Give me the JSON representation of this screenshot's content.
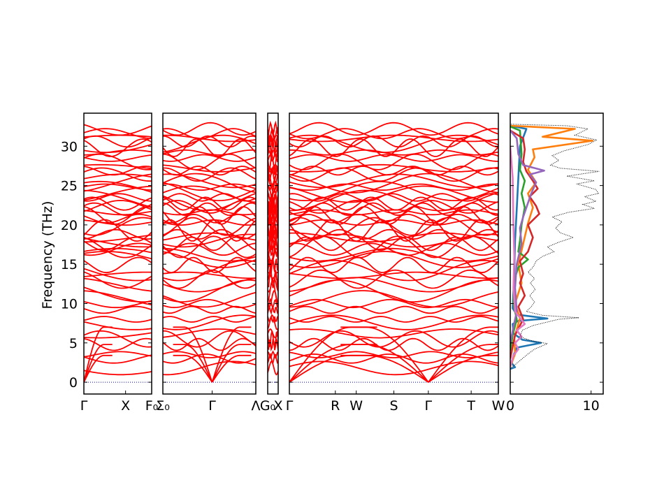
{
  "chart_data": {
    "type": "line",
    "ylabel": "Frequency (THz)",
    "xlabel": "",
    "title": "",
    "ylim": [
      -1.5,
      34.2
    ],
    "y_ticks": [
      0,
      5,
      10,
      15,
      20,
      25,
      30
    ],
    "grid": false,
    "band_color": "#ff0000",
    "zero_line_color": "#0000cc",
    "band_panels": [
      {
        "path": [
          "Γ",
          "X",
          "F_0"
        ],
        "tick_labels": [
          "Γ",
          "X",
          "F₀"
        ]
      },
      {
        "path": [
          "Σ_0",
          "Γ",
          "Λ_0"
        ],
        "tick_labels": [
          "Σ₀",
          "Γ",
          "Λ"
        ]
      },
      {
        "path": [
          "G_0",
          "X"
        ],
        "tick_labels": [
          "G₀",
          "X"
        ]
      },
      {
        "path": [
          "Γ",
          "R",
          "W",
          "S",
          "Γ",
          "T",
          "W"
        ],
        "tick_labels": [
          "Γ",
          "R",
          "W",
          "S",
          "Γ",
          "T",
          "W"
        ]
      }
    ],
    "dos_panel": {
      "x_ticks": [
        0,
        10
      ],
      "xlim": [
        0,
        11.5
      ],
      "total_dos": {
        "style": "dotted",
        "color": "#000000",
        "points": [
          [
            0,
            1.7
          ],
          [
            0.3,
            2.0
          ],
          [
            0.8,
            2.4
          ],
          [
            1.5,
            3.0
          ],
          [
            2.2,
            3.6
          ],
          [
            3.0,
            4.2
          ],
          [
            4.6,
            4.9
          ],
          [
            2.5,
            5.3
          ],
          [
            1.2,
            5.8
          ],
          [
            1.5,
            6.6
          ],
          [
            2.8,
            7.2
          ],
          [
            6.0,
            8.0
          ],
          [
            8.5,
            8.2
          ],
          [
            4.0,
            8.5
          ],
          [
            2.0,
            9.0
          ],
          [
            2.6,
            9.6
          ],
          [
            3.0,
            10.2
          ],
          [
            2.4,
            11.0
          ],
          [
            3.1,
            11.8
          ],
          [
            2.5,
            12.6
          ],
          [
            3.0,
            13.2
          ],
          [
            2.2,
            14.0
          ],
          [
            2.8,
            14.6
          ],
          [
            3.2,
            15.4
          ],
          [
            4.0,
            16.0
          ],
          [
            5.4,
            16.6
          ],
          [
            4.6,
            17.2
          ],
          [
            6.0,
            17.8
          ],
          [
            7.8,
            18.4
          ],
          [
            6.2,
            19.0
          ],
          [
            5.6,
            19.6
          ],
          [
            6.4,
            20.4
          ],
          [
            5.2,
            21.0
          ],
          [
            7.2,
            21.6
          ],
          [
            10.4,
            22.1
          ],
          [
            9.0,
            22.6
          ],
          [
            10.6,
            23.0
          ],
          [
            9.2,
            23.6
          ],
          [
            10.9,
            24.0
          ],
          [
            10.6,
            24.5
          ],
          [
            8.2,
            25.2
          ],
          [
            10.4,
            25.6
          ],
          [
            7.0,
            26.2
          ],
          [
            11.0,
            26.8
          ],
          [
            6.2,
            27.2
          ],
          [
            5.0,
            27.6
          ],
          [
            6.0,
            28.2
          ],
          [
            5.2,
            28.8
          ],
          [
            6.6,
            29.4
          ],
          [
            9.6,
            30.2
          ],
          [
            10.7,
            30.8
          ],
          [
            8.0,
            31.4
          ],
          [
            9.6,
            32.2
          ],
          [
            7.0,
            32.6
          ],
          [
            0,
            32.8
          ]
        ]
      },
      "projected_dos": [
        {
          "color": "#1f77b4",
          "points": [
            [
              0,
              1.7
            ],
            [
              0.6,
              1.9
            ],
            [
              0.2,
              2.4
            ],
            [
              0.4,
              3.4
            ],
            [
              0.8,
              4.4
            ],
            [
              3.8,
              5.0
            ],
            [
              1.5,
              5.4
            ],
            [
              0.4,
              6.2
            ],
            [
              0.3,
              7.4
            ],
            [
              1.0,
              7.8
            ],
            [
              4.6,
              8.1
            ],
            [
              0.8,
              8.6
            ],
            [
              0.3,
              9.4
            ],
            [
              0.5,
              14.0
            ],
            [
              0.6,
              18.0
            ],
            [
              0.8,
              22.0
            ],
            [
              1.0,
              26.0
            ],
            [
              1.2,
              30.0
            ],
            [
              2.0,
              32.2
            ],
            [
              0,
              32.6
            ]
          ]
        },
        {
          "color": "#ff7f0e",
          "points": [
            [
              0,
              2.0
            ],
            [
              0.6,
              3.6
            ],
            [
              0.5,
              5.6
            ],
            [
              1.2,
              8.2
            ],
            [
              0.6,
              10.0
            ],
            [
              1.4,
              12.6
            ],
            [
              1.0,
              15.0
            ],
            [
              1.6,
              17.6
            ],
            [
              2.2,
              20.2
            ],
            [
              2.8,
              22.2
            ],
            [
              2.2,
              24.0
            ],
            [
              3.2,
              25.4
            ],
            [
              2.2,
              27.0
            ],
            [
              3.0,
              28.6
            ],
            [
              2.8,
              29.6
            ],
            [
              10.2,
              30.7
            ],
            [
              4.0,
              31.2
            ],
            [
              8.0,
              32.2
            ],
            [
              0,
              32.6
            ]
          ]
        },
        {
          "color": "#2ca02c",
          "points": [
            [
              0,
              4.0
            ],
            [
              0.3,
              6.0
            ],
            [
              0.8,
              8.0
            ],
            [
              0.4,
              10.0
            ],
            [
              0.5,
              13.0
            ],
            [
              1.0,
              14.6
            ],
            [
              2.2,
              15.6
            ],
            [
              1.0,
              16.6
            ],
            [
              1.2,
              18.0
            ],
            [
              1.4,
              20.0
            ],
            [
              1.8,
              22.2
            ],
            [
              1.4,
              24.0
            ],
            [
              1.8,
              25.6
            ],
            [
              1.2,
              27.0
            ],
            [
              1.4,
              29.0
            ],
            [
              1.2,
              32.0
            ],
            [
              0,
              32.5
            ]
          ]
        },
        {
          "color": "#d62728",
          "points": [
            [
              0,
              3.0
            ],
            [
              0.6,
              6.0
            ],
            [
              1.6,
              8.0
            ],
            [
              1.0,
              9.6
            ],
            [
              1.8,
              11.0
            ],
            [
              1.2,
              12.6
            ],
            [
              1.6,
              13.8
            ],
            [
              1.2,
              15.4
            ],
            [
              2.2,
              16.6
            ],
            [
              2.8,
              18.4
            ],
            [
              2.2,
              20.0
            ],
            [
              3.6,
              21.4
            ],
            [
              3.2,
              22.4
            ],
            [
              2.4,
              23.6
            ],
            [
              3.4,
              24.6
            ],
            [
              2.8,
              25.6
            ],
            [
              2.0,
              26.8
            ],
            [
              1.6,
              28.0
            ],
            [
              1.8,
              29.6
            ],
            [
              1.6,
              31.0
            ],
            [
              0,
              32.0
            ]
          ]
        },
        {
          "color": "#9467bd",
          "points": [
            [
              0,
              5.0
            ],
            [
              0.4,
              7.0
            ],
            [
              0.8,
              9.0
            ],
            [
              0.6,
              12.0
            ],
            [
              0.8,
              15.0
            ],
            [
              1.4,
              17.6
            ],
            [
              1.2,
              19.6
            ],
            [
              1.6,
              21.0
            ],
            [
              2.2,
              22.8
            ],
            [
              2.6,
              24.0
            ],
            [
              3.2,
              25.4
            ],
            [
              2.4,
              26.4
            ],
            [
              4.2,
              26.9
            ],
            [
              1.6,
              27.6
            ],
            [
              1.0,
              29.0
            ],
            [
              0.8,
              31.0
            ],
            [
              0,
              32.0
            ]
          ]
        },
        {
          "color": "#e377c2",
          "points": [
            [
              0,
              2.0
            ],
            [
              0.4,
              3.4
            ],
            [
              1.0,
              4.2
            ],
            [
              0.6,
              5.0
            ],
            [
              1.4,
              5.8
            ],
            [
              0.8,
              6.6
            ],
            [
              1.8,
              7.4
            ],
            [
              0.6,
              9.0
            ],
            [
              0.4,
              12.0
            ],
            [
              0.5,
              16.0
            ],
            [
              0.4,
              20.0
            ],
            [
              0.3,
              26.0
            ],
            [
              0,
              30.0
            ]
          ]
        }
      ]
    }
  }
}
